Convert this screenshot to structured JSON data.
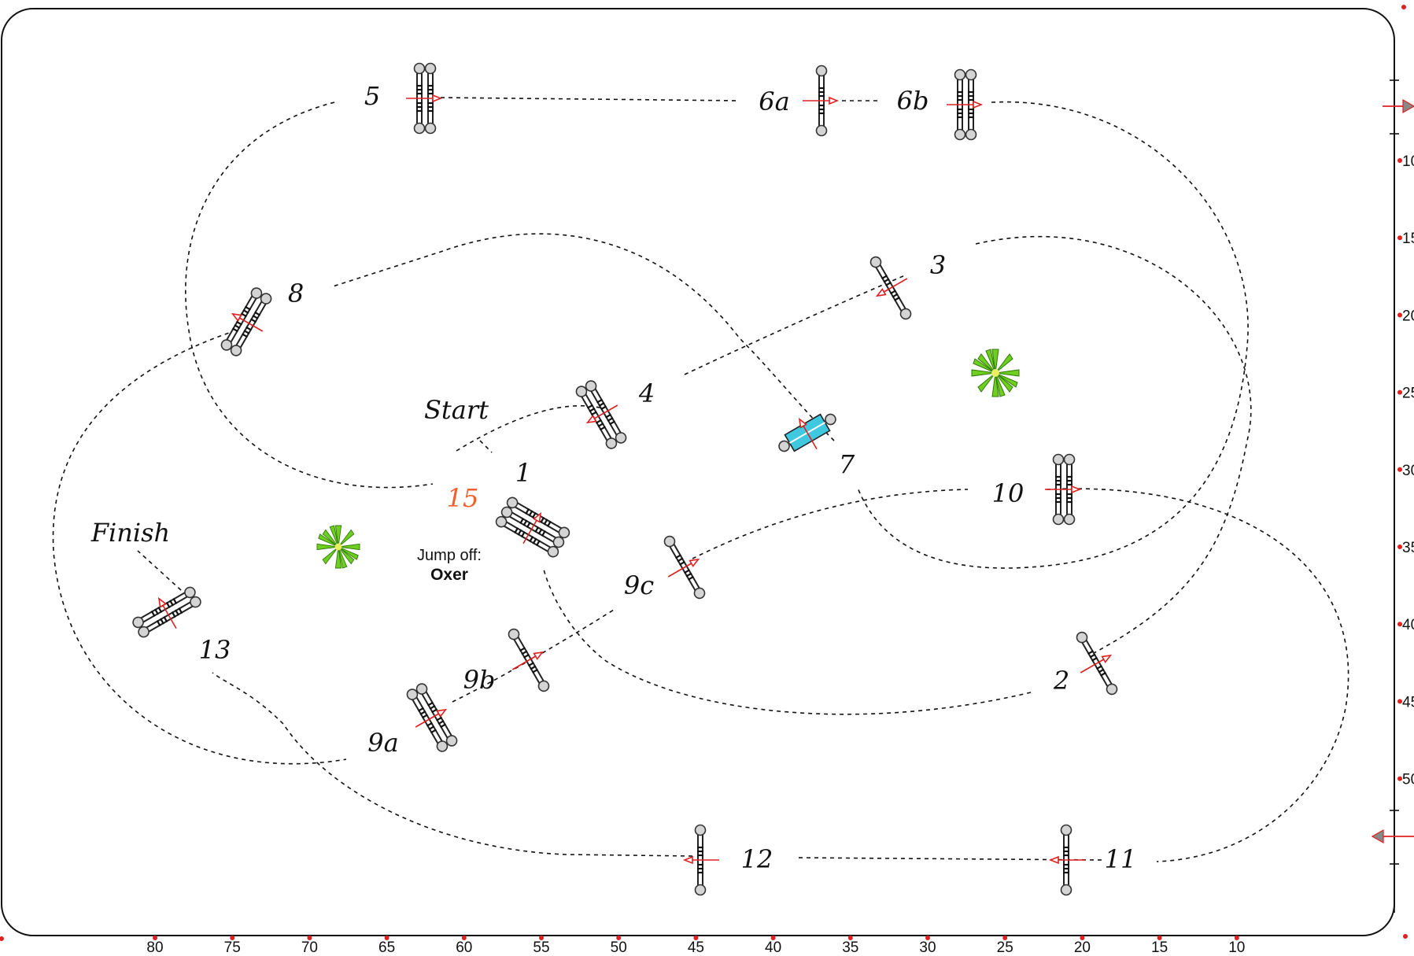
{
  "labels": {
    "start": "Start",
    "finish": "Finish",
    "jump_off_line1": "Jump off:",
    "jump_off_line2": "Oxer",
    "orange_number": "15"
  },
  "fences": [
    {
      "id": "1",
      "kind": "triple-oxer"
    },
    {
      "id": "2",
      "kind": "vertical"
    },
    {
      "id": "3",
      "kind": "vertical"
    },
    {
      "id": "4",
      "kind": "oxer"
    },
    {
      "id": "5",
      "kind": "oxer"
    },
    {
      "id": "6a",
      "kind": "vertical"
    },
    {
      "id": "6b",
      "kind": "oxer"
    },
    {
      "id": "7",
      "kind": "water-tray"
    },
    {
      "id": "8",
      "kind": "oxer"
    },
    {
      "id": "9a",
      "kind": "oxer"
    },
    {
      "id": "9b",
      "kind": "vertical"
    },
    {
      "id": "9c",
      "kind": "vertical"
    },
    {
      "id": "10",
      "kind": "oxer"
    },
    {
      "id": "11",
      "kind": "vertical"
    },
    {
      "id": "12",
      "kind": "vertical"
    },
    {
      "id": "13",
      "kind": "oxer"
    }
  ],
  "x_scale_labels": [
    "80",
    "75",
    "70",
    "65",
    "60",
    "55",
    "50",
    "45",
    "40",
    "35",
    "30",
    "25",
    "20",
    "15",
    "10"
  ],
  "y_scale_labels": [
    "10",
    "15",
    "20",
    "25",
    "30",
    "35",
    "40",
    "45",
    "50"
  ],
  "decorations": [
    "plant-icon",
    "plant-icon"
  ],
  "colors": {
    "fence_arrow": "#e02020",
    "orange_number": "#f06030",
    "water_tray": "#40c8e0",
    "plant": "#6fcf1f",
    "scale_dot": "#e02020"
  }
}
